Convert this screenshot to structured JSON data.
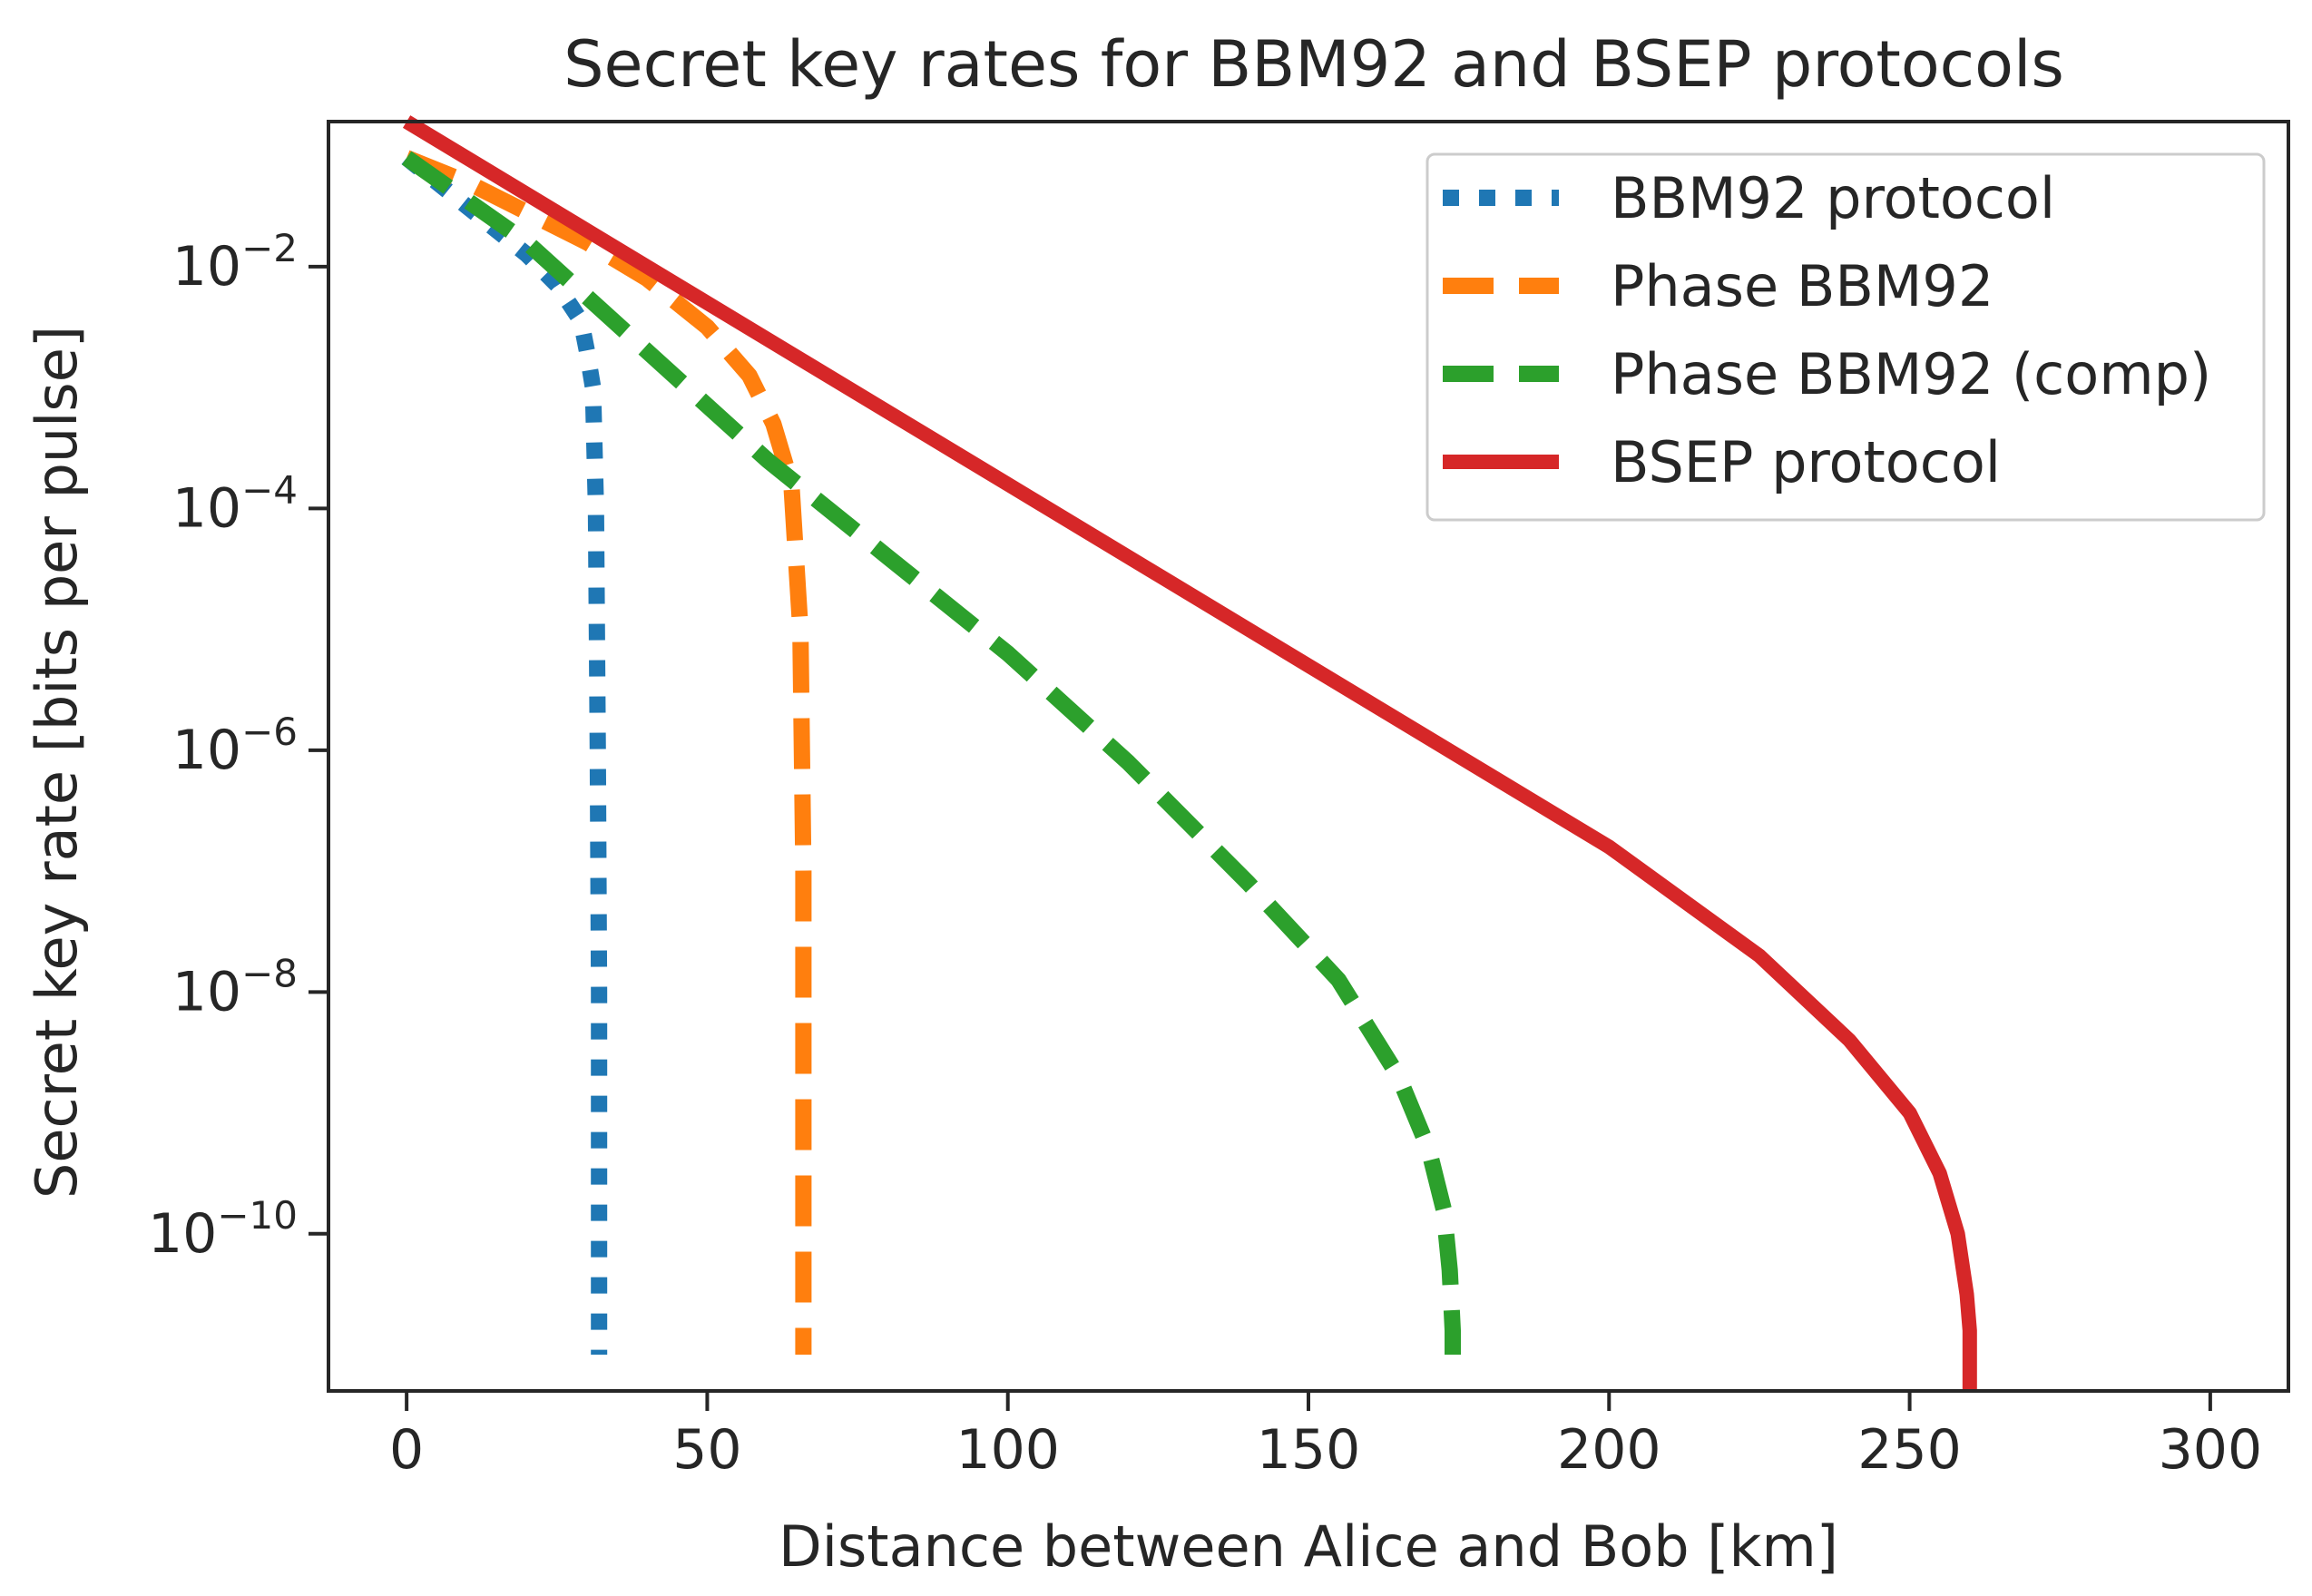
{
  "chart_data": {
    "type": "line",
    "title": "Secret key rates for BBM92 and BSEP protocols",
    "xlabel": "Distance between Alice and Bob [km]",
    "ylabel": "Secret key rate [bits per pulse]",
    "xlim": [
      -13,
      313
    ],
    "ylim_log10": [
      -11.3,
      -0.8
    ],
    "yscale": "log",
    "grid": false,
    "legend_position": "top-right",
    "x_ticks": [
      0,
      50,
      100,
      150,
      200,
      250,
      300
    ],
    "x_tick_labels": [
      "0",
      "50",
      "100",
      "150",
      "200",
      "250",
      "300"
    ],
    "y_ticks_log10": [
      -2,
      -4,
      -6,
      -8,
      -10
    ],
    "y_tick_labels": [
      {
        "base": "10",
        "exp": "−2"
      },
      {
        "base": "10",
        "exp": "−4"
      },
      {
        "base": "10",
        "exp": "−6"
      },
      {
        "base": "10",
        "exp": "−8"
      },
      {
        "base": "10",
        "exp": "−10"
      }
    ],
    "series": [
      {
        "name": "BBM92 protocol",
        "color": "#1f77b4",
        "style": "dotted",
        "x": [
          0,
          10,
          20,
          25,
          29,
          30,
          31,
          31.5,
          31.8,
          32,
          32,
          32,
          32
        ],
        "log10_y": [
          -1.1,
          -1.5,
          -1.9,
          -2.15,
          -2.45,
          -2.7,
          -3.0,
          -4.0,
          -6.0,
          -8.0,
          -10.0,
          -10.5,
          -11.0
        ]
      },
      {
        "name": "Phase BBM92",
        "color": "#ff7f0e",
        "style": "dashed",
        "x": [
          0,
          10,
          20,
          30,
          40,
          50,
          57,
          61,
          64,
          65.5,
          66,
          66,
          66
        ],
        "log10_y": [
          -1.1,
          -1.3,
          -1.55,
          -1.8,
          -2.1,
          -2.5,
          -2.9,
          -3.3,
          -3.8,
          -5.0,
          -7.0,
          -9.5,
          -11.0
        ]
      },
      {
        "name": "Phase BBM92 (comp)",
        "color": "#2ca02c",
        "style": "dashed",
        "x": [
          0,
          20,
          40,
          60,
          80,
          100,
          120,
          140,
          155,
          165,
          170,
          172.5,
          173.5,
          174,
          174
        ],
        "log10_y": [
          -1.1,
          -1.8,
          -2.7,
          -3.6,
          -4.4,
          -5.2,
          -6.1,
          -7.1,
          -7.9,
          -8.7,
          -9.3,
          -9.8,
          -10.3,
          -10.8,
          -11.0
        ]
      },
      {
        "name": "BSEP protocol",
        "color": "#d62728",
        "style": "solid",
        "x": [
          0,
          50,
          100,
          150,
          200,
          225,
          240,
          250,
          255,
          258,
          259.5,
          260,
          260
        ],
        "log10_y": [
          -0.8,
          -2.3,
          -3.8,
          -5.3,
          -6.8,
          -7.7,
          -8.4,
          -9.0,
          -9.5,
          -10.0,
          -10.5,
          -10.8,
          -11.3
        ]
      }
    ]
  }
}
